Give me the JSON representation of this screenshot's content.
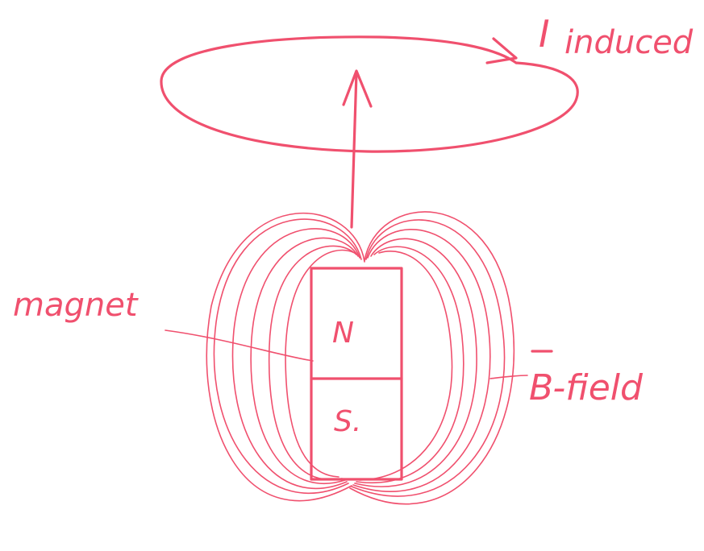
{
  "colors": {
    "ink": "#f0506e",
    "paper": "#ffffff"
  },
  "labels": {
    "current": "I",
    "current_sub": "induced",
    "magnet": "magnet",
    "north": "N",
    "south": "S.",
    "field": "B-field"
  }
}
